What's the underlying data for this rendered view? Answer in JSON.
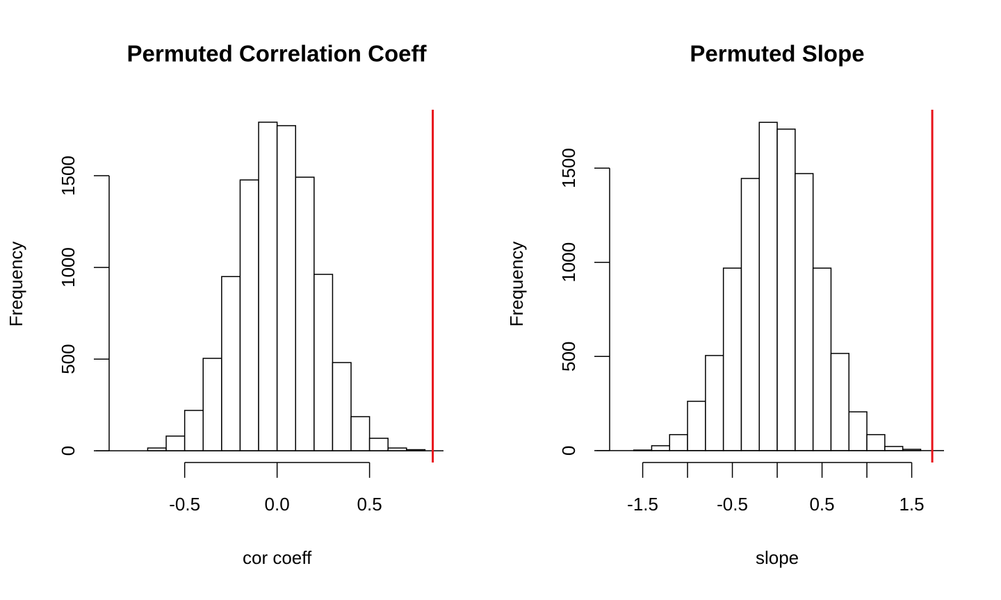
{
  "chart_data": [
    {
      "type": "histogram",
      "title": "Permuted Correlation Coeff",
      "x_label": "cor coeff",
      "y_label": "Frequency",
      "bins": [
        -0.7,
        -0.6,
        -0.5,
        -0.4,
        -0.3,
        -0.2,
        -0.1,
        0.0,
        0.1,
        0.2,
        0.3,
        0.4,
        0.5,
        0.6,
        0.7,
        0.8
      ],
      "values": [
        15,
        80,
        220,
        504,
        950,
        1477,
        1792,
        1773,
        1492,
        962,
        481,
        186,
        68,
        15,
        6
      ],
      "xlim": [
        -0.98,
        0.9
      ],
      "ylim": [
        -64,
        1860
      ],
      "xticks": [
        {
          "value": -0.5,
          "label": "-0.5"
        },
        {
          "value": 0,
          "label": "0.0"
        },
        {
          "value": 0.5,
          "label": "0.5"
        }
      ],
      "yticks": [
        0,
        500,
        1000,
        1500
      ],
      "vline": 0.842,
      "vline_color": "#e8141b",
      "bar_color": "#ffffff",
      "edge_color": "#000000"
    },
    {
      "type": "histogram",
      "title": "Permuted Slope",
      "x_label": "slope",
      "y_label": "Frequency",
      "bins": [
        -1.6,
        -1.4,
        -1.2,
        -1.0,
        -0.8,
        -0.6,
        -0.4,
        -0.2,
        0.0,
        0.2,
        0.4,
        0.6,
        0.8,
        1.0,
        1.2,
        1.4,
        1.6
      ],
      "values": [
        3,
        26,
        85,
        262,
        505,
        969,
        1445,
        1743,
        1707,
        1471,
        969,
        516,
        206,
        85,
        22,
        7
      ],
      "xlim": [
        -2.016,
        1.86
      ],
      "ylim": [
        -63,
        1810
      ],
      "xticks": [
        -1.5,
        -0.5,
        0.5,
        1.5
      ],
      "xminor_ticks": [
        -1,
        0,
        1
      ],
      "yticks": [
        0,
        500,
        1000,
        1500
      ],
      "vline": 1.729,
      "vline_color": "#e8141b",
      "bar_color": "#ffffff",
      "edge_color": "#000000"
    }
  ]
}
